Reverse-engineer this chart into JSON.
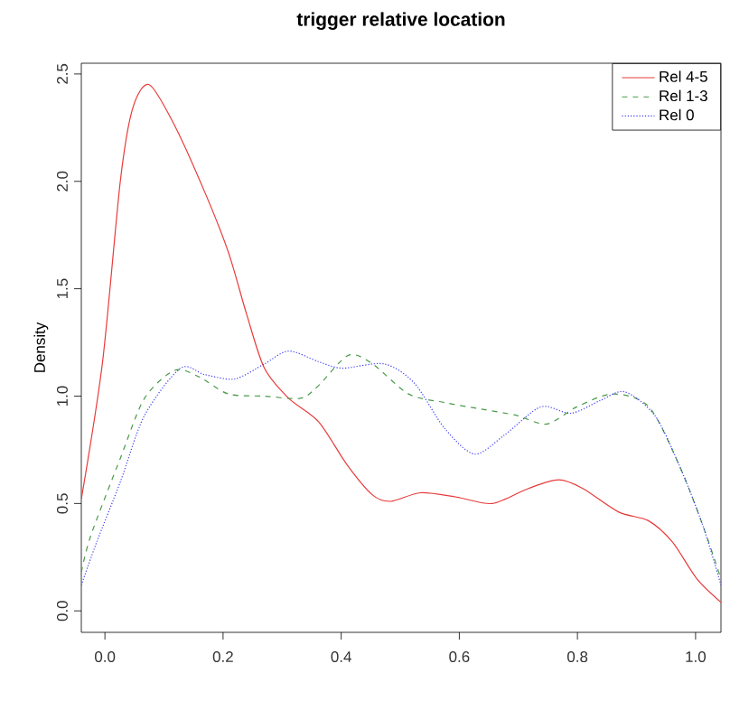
{
  "chart_data": {
    "type": "line",
    "title": "trigger relative location",
    "ylabel": "Density",
    "xlim": [
      -0.04,
      1.043
    ],
    "ylim": [
      -0.1,
      2.55
    ],
    "xticks": [
      {
        "value": 0,
        "label": "0.0"
      },
      {
        "value": 0.2,
        "label": "0.2"
      },
      {
        "value": 0.4,
        "label": "0.4"
      },
      {
        "value": 0.6,
        "label": "0.6"
      },
      {
        "value": 0.8,
        "label": "0.8"
      },
      {
        "value": 1,
        "label": "1.0"
      }
    ],
    "yticks": [
      {
        "value": 0,
        "label": "0.0"
      },
      {
        "value": 0.5,
        "label": "0.5"
      },
      {
        "value": 1,
        "label": "1.0"
      },
      {
        "value": 1.5,
        "label": "1.5"
      },
      {
        "value": 2,
        "label": "2.0"
      },
      {
        "value": 2.5,
        "label": "2.5"
      }
    ],
    "legend": "top right",
    "grid": false,
    "marker": "none",
    "series": [
      {
        "name": "Rel 4-5",
        "color": "#e83a3a",
        "line_style": "solid",
        "x": [
          -0.04,
          -0.004,
          0.026,
          0.047,
          0.075,
          0.118,
          0.169,
          0.209,
          0.24,
          0.27,
          0.311,
          0.362,
          0.41,
          0.453,
          0.484,
          0.534,
          0.595,
          0.656,
          0.717,
          0.768,
          0.809,
          0.87,
          0.92,
          0.961,
          1.002,
          1.043
        ],
        "values": [
          0.52,
          1.16,
          2.0,
          2.34,
          2.45,
          2.26,
          1.95,
          1.67,
          1.38,
          1.13,
          0.99,
          0.88,
          0.68,
          0.54,
          0.51,
          0.55,
          0.53,
          0.5,
          0.57,
          0.61,
          0.57,
          0.46,
          0.42,
          0.32,
          0.15,
          0.04
        ]
      },
      {
        "name": "Rel 1-3",
        "color": "#4a9a4a",
        "line_style": "dashed",
        "x": [
          -0.04,
          -0.024,
          0.026,
          0.067,
          0.118,
          0.159,
          0.209,
          0.27,
          0.331,
          0.362,
          0.412,
          0.453,
          0.514,
          0.575,
          0.636,
          0.697,
          0.748,
          0.799,
          0.86,
          0.921,
          0.972,
          1.012,
          1.043
        ],
        "values": [
          0.18,
          0.35,
          0.71,
          0.99,
          1.12,
          1.09,
          1.01,
          1.0,
          0.99,
          1.05,
          1.19,
          1.15,
          1.01,
          0.97,
          0.94,
          0.91,
          0.87,
          0.95,
          1.01,
          0.95,
          0.68,
          0.4,
          0.15
        ]
      },
      {
        "name": "Rel 0",
        "color": "#3c3cf0",
        "line_style": "dotted",
        "x": [
          -0.04,
          -0.014,
          0.026,
          0.067,
          0.128,
          0.169,
          0.22,
          0.27,
          0.311,
          0.362,
          0.402,
          0.473,
          0.524,
          0.575,
          0.626,
          0.677,
          0.738,
          0.789,
          0.839,
          0.88,
          0.931,
          0.972,
          1.012,
          1.043
        ],
        "values": [
          0.12,
          0.32,
          0.6,
          0.91,
          1.13,
          1.1,
          1.08,
          1.15,
          1.21,
          1.16,
          1.13,
          1.15,
          1.06,
          0.85,
          0.73,
          0.82,
          0.95,
          0.92,
          0.98,
          1.02,
          0.91,
          0.68,
          0.4,
          0.12
        ]
      }
    ]
  }
}
